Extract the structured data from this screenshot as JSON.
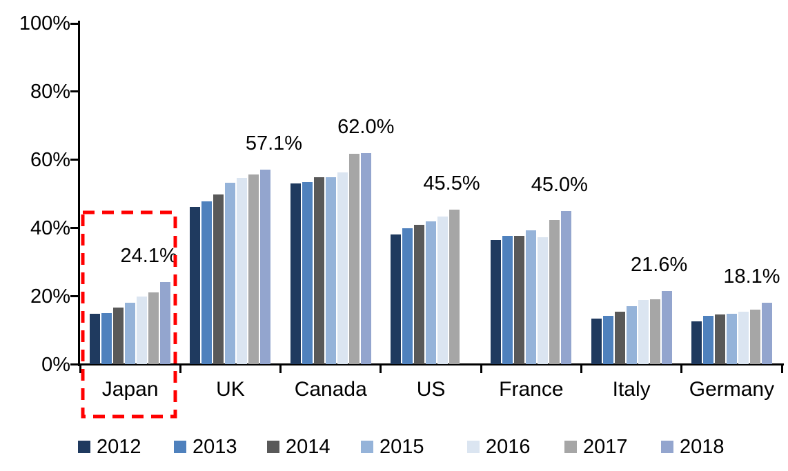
{
  "chart_data": {
    "type": "bar",
    "title": "",
    "unit": "%",
    "categories": [
      "Japan",
      "UK",
      "Canada",
      "US",
      "France",
      "Italy",
      "Germany"
    ],
    "series": [
      {
        "name": "2012",
        "color": "#1F3A5F",
        "values": [
          14.8,
          46.2,
          53.0,
          38.2,
          36.6,
          13.4,
          12.6
        ]
      },
      {
        "name": "2013",
        "color": "#4F81BD",
        "values": [
          15.0,
          47.8,
          53.5,
          40.0,
          37.8,
          14.2,
          14.2
        ]
      },
      {
        "name": "2014",
        "color": "#595959",
        "values": [
          16.6,
          49.9,
          55.0,
          40.9,
          37.7,
          15.5,
          14.7
        ]
      },
      {
        "name": "2015",
        "color": "#95B3D9",
        "values": [
          18.0,
          53.2,
          54.9,
          42.0,
          39.4,
          17.0,
          14.9
        ]
      },
      {
        "name": "2016",
        "color": "#DBE5F1",
        "values": [
          20.0,
          54.8,
          56.4,
          43.4,
          37.4,
          19.0,
          15.5
        ]
      },
      {
        "name": "2017",
        "color": "#A6A6A6",
        "values": [
          21.2,
          55.7,
          61.7,
          45.5,
          42.4,
          19.2,
          16.1
        ]
      },
      {
        "name": "2018",
        "color": "#93A5CE",
        "values": [
          24.1,
          57.1,
          62.0,
          null,
          45.0,
          21.6,
          18.1
        ]
      }
    ],
    "peak_labels": [
      "24.1%",
      "57.1%",
      "62.0%",
      "45.5%",
      "45.0%",
      "21.6%",
      "18.1%"
    ],
    "ylim": [
      0,
      100
    ],
    "yticks": [
      "0%",
      "20%",
      "40%",
      "60%",
      "80%",
      "100%"
    ],
    "grid": false,
    "legend_position": "bottom",
    "legend_labels": [
      "2012",
      "2013",
      "2014",
      "2015",
      "2016",
      "2017",
      "2018"
    ],
    "highlight": {
      "category": "Japan",
      "style": "red-dashed-box",
      "color": "#FF0000"
    }
  }
}
